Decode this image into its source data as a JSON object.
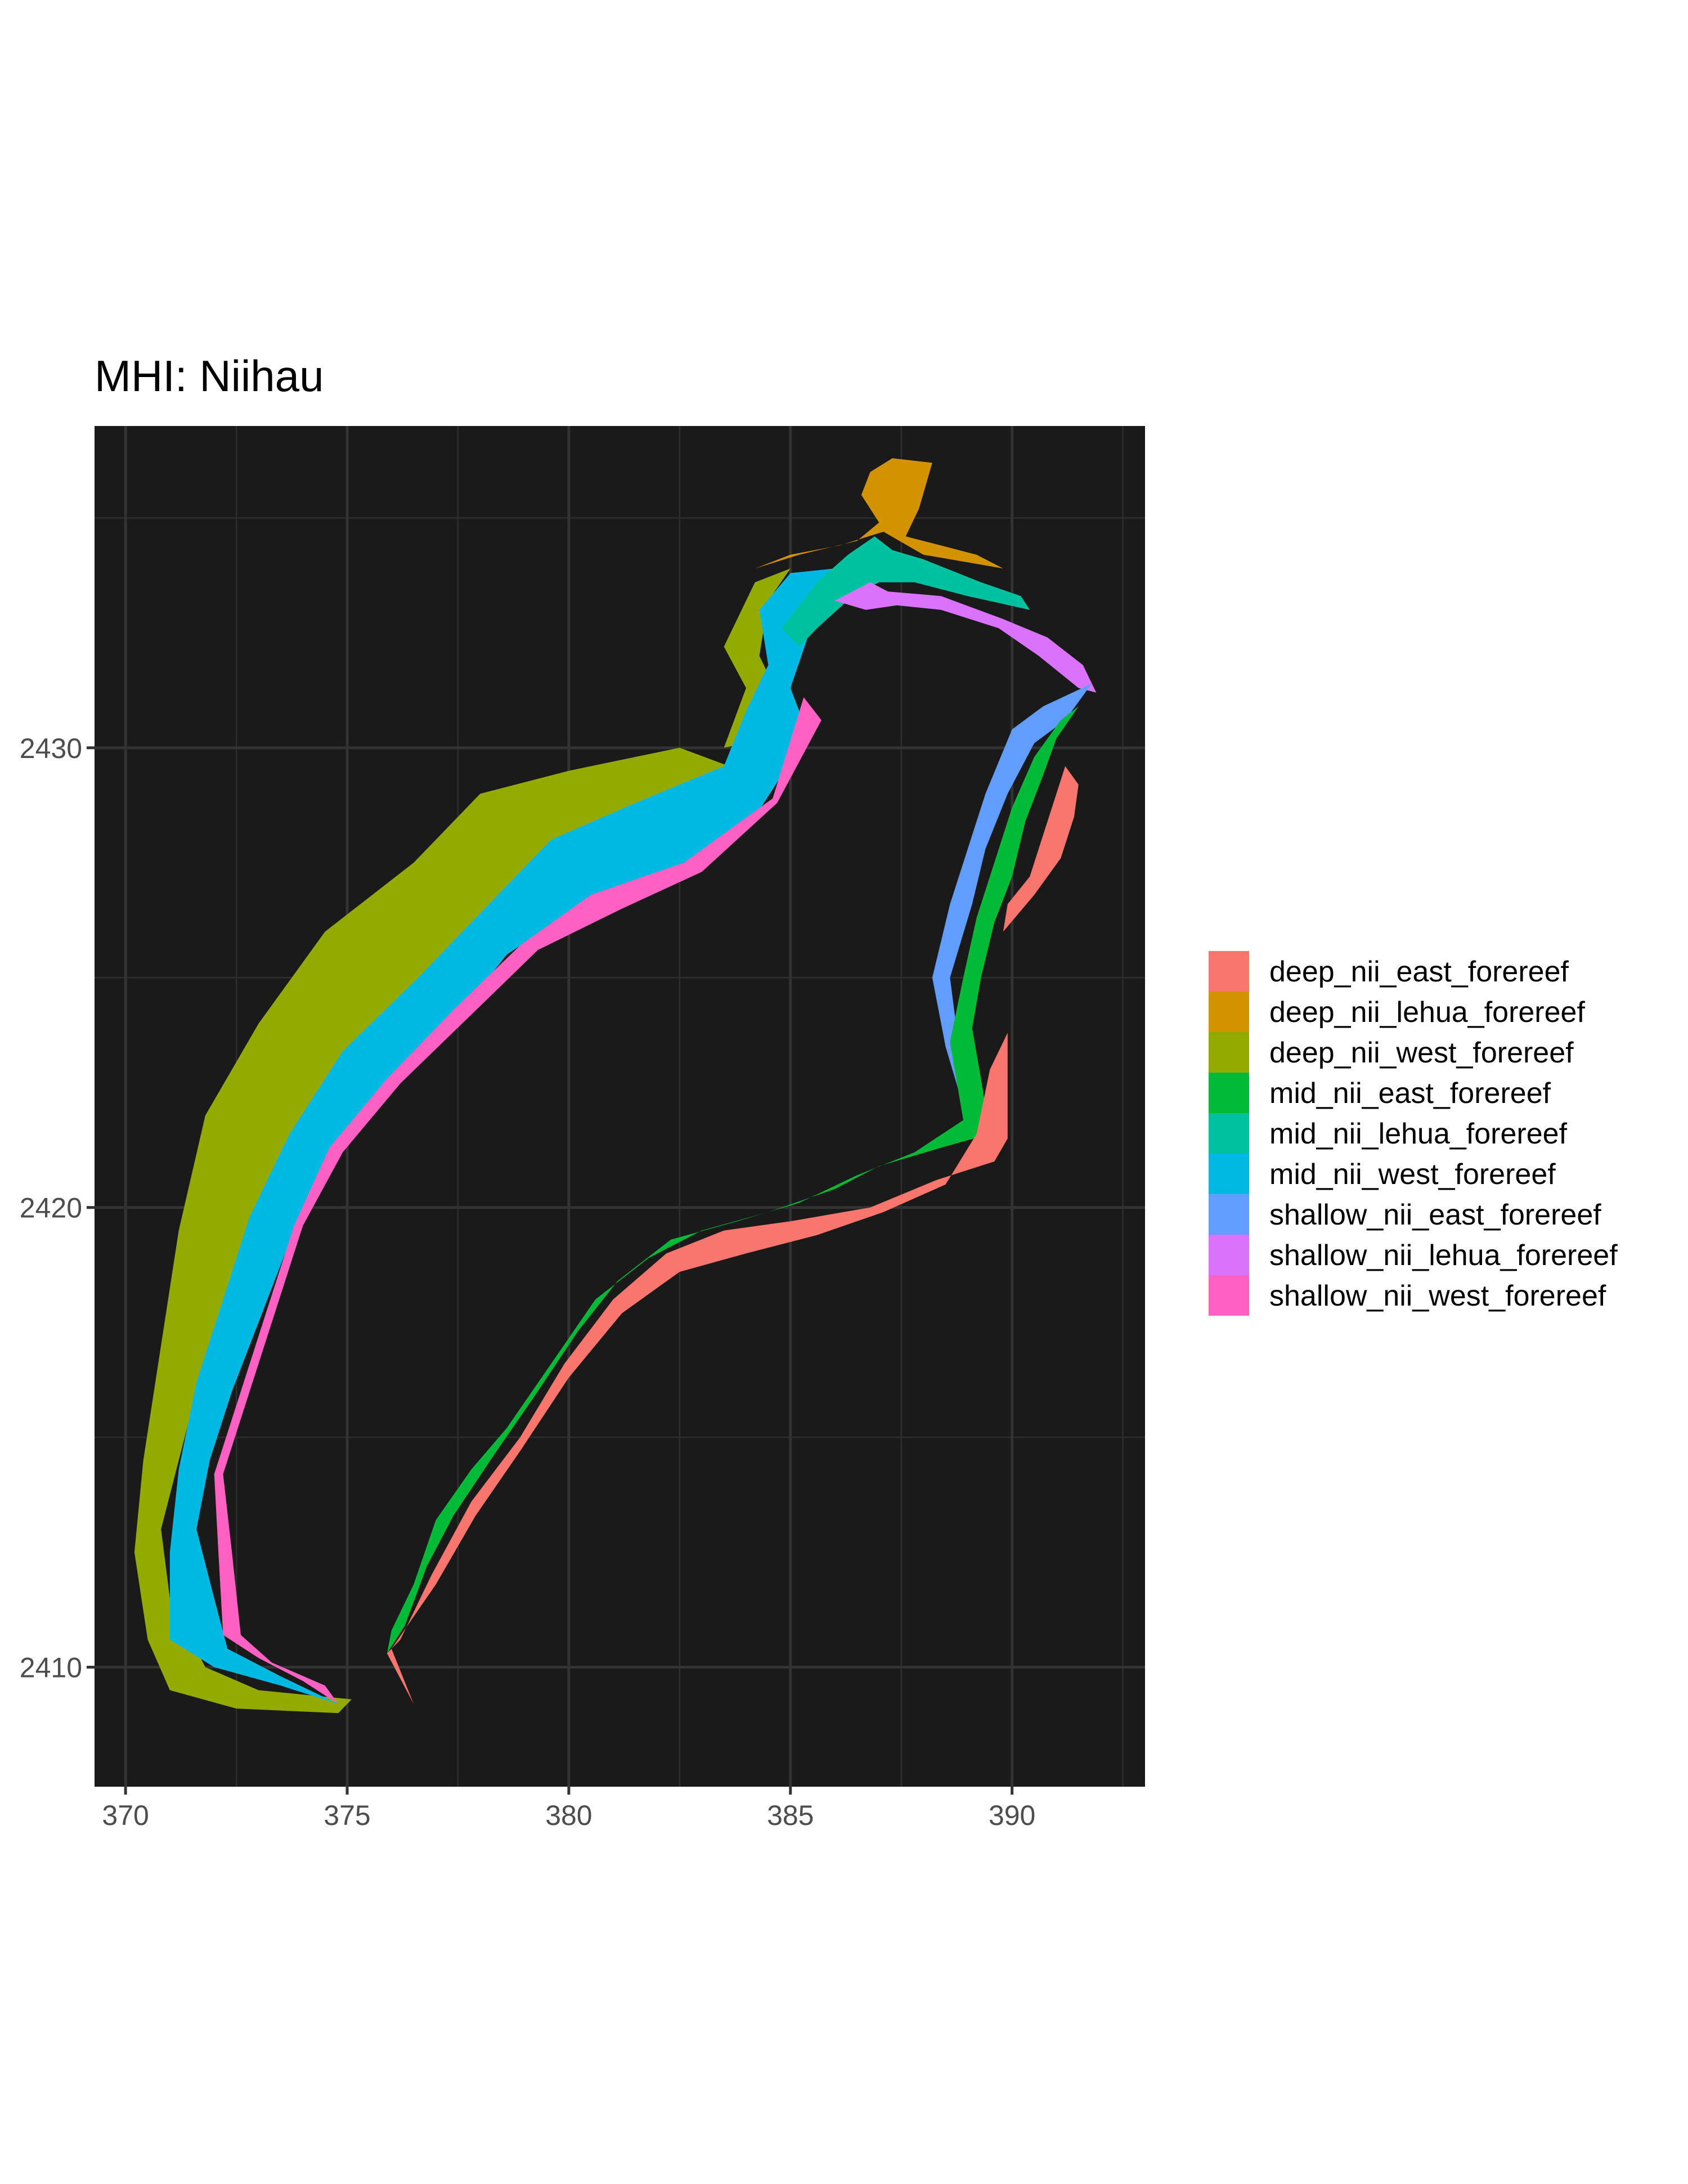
{
  "chart_data": {
    "type": "raster-map",
    "title": "MHI: Niihau",
    "xlabel": "",
    "ylabel": "",
    "xlim": [
      369.3,
      393
    ],
    "ylim": [
      2407.4,
      2437.0
    ],
    "x_ticks": [
      370,
      375,
      380,
      385,
      390
    ],
    "y_ticks": [
      2410,
      2420,
      2430
    ],
    "grid": true,
    "panel_background": "#1a1a1a",
    "legend_position": "right",
    "legend": [
      {
        "name": "deep_nii_east_forereef",
        "color": "#F8766D"
      },
      {
        "name": "deep_nii_lehua_forereef",
        "color": "#D39200"
      },
      {
        "name": "deep_nii_west_forereef",
        "color": "#93AA00"
      },
      {
        "name": "mid_nii_east_forereef",
        "color": "#00BA38"
      },
      {
        "name": "mid_nii_lehua_forereef",
        "color": "#00C19F"
      },
      {
        "name": "mid_nii_west_forereef",
        "color": "#00B9E3"
      },
      {
        "name": "shallow_nii_east_forereef",
        "color": "#619CFF"
      },
      {
        "name": "shallow_nii_lehua_forereef",
        "color": "#DB72FB"
      },
      {
        "name": "shallow_nii_west_forereef",
        "color": "#FF61C3"
      }
    ],
    "regions": [
      {
        "class": "deep_nii_west_forereef",
        "points": [
          [
            370.5,
            2410.6
          ],
          [
            371.0,
            2409.5
          ],
          [
            372.5,
            2409.1
          ],
          [
            374.8,
            2409.0
          ],
          [
            375.1,
            2409.3
          ],
          [
            373.0,
            2409.5
          ],
          [
            371.8,
            2410.0
          ],
          [
            371.0,
            2411.5
          ],
          [
            370.8,
            2413.0
          ],
          [
            371.2,
            2414.5
          ],
          [
            371.6,
            2416.0
          ],
          [
            372.2,
            2417.6
          ],
          [
            372.8,
            2419.2
          ],
          [
            373.6,
            2421.0
          ],
          [
            374.6,
            2422.6
          ],
          [
            376.3,
            2424.4
          ],
          [
            377.8,
            2425.7
          ],
          [
            379.2,
            2427.4
          ],
          [
            381.2,
            2428.5
          ],
          [
            383.5,
            2429.0
          ],
          [
            383.9,
            2429.5
          ],
          [
            382.5,
            2430.0
          ],
          [
            380.0,
            2429.5
          ],
          [
            378.0,
            2429.0
          ],
          [
            376.5,
            2427.5
          ],
          [
            374.5,
            2426.0
          ],
          [
            373.0,
            2424.0
          ],
          [
            371.8,
            2422.0
          ],
          [
            371.2,
            2419.5
          ],
          [
            370.8,
            2417.0
          ],
          [
            370.4,
            2414.5
          ],
          [
            370.2,
            2412.5
          ]
        ]
      },
      {
        "class": "deep_nii_west_forereef",
        "points": [
          [
            383.5,
            2430.0
          ],
          [
            384.0,
            2431.3
          ],
          [
            383.5,
            2432.2
          ],
          [
            384.2,
            2433.6
          ],
          [
            385.0,
            2433.9
          ],
          [
            384.5,
            2433.2
          ],
          [
            384.3,
            2432.0
          ],
          [
            384.8,
            2431.0
          ],
          [
            384.5,
            2430.2
          ]
        ]
      },
      {
        "class": "mid_nii_west_forereef",
        "points": [
          [
            371.0,
            2410.6
          ],
          [
            372.0,
            2410.0
          ],
          [
            373.5,
            2409.6
          ],
          [
            374.8,
            2409.2
          ],
          [
            373.5,
            2409.8
          ],
          [
            372.3,
            2410.4
          ],
          [
            372.0,
            2411.5
          ],
          [
            371.6,
            2413.0
          ],
          [
            371.9,
            2414.5
          ],
          [
            372.4,
            2416.0
          ],
          [
            373.0,
            2417.5
          ],
          [
            373.6,
            2419.0
          ],
          [
            374.4,
            2420.7
          ],
          [
            375.6,
            2422.2
          ],
          [
            377.2,
            2423.8
          ],
          [
            378.6,
            2425.5
          ],
          [
            380.3,
            2426.6
          ],
          [
            382.5,
            2427.3
          ],
          [
            384.2,
            2428.5
          ],
          [
            385.4,
            2430.3
          ],
          [
            385.0,
            2431.3
          ],
          [
            385.6,
            2433.0
          ],
          [
            386.5,
            2433.6
          ],
          [
            386.8,
            2434.2
          ],
          [
            386.0,
            2433.9
          ],
          [
            385.0,
            2433.8
          ],
          [
            384.3,
            2433.0
          ],
          [
            384.5,
            2431.8
          ],
          [
            384.0,
            2430.8
          ],
          [
            383.5,
            2429.6
          ],
          [
            381.5,
            2428.8
          ],
          [
            379.6,
            2428.0
          ],
          [
            378.1,
            2426.5
          ],
          [
            376.6,
            2425.0
          ],
          [
            374.9,
            2423.4
          ],
          [
            373.7,
            2421.6
          ],
          [
            372.8,
            2419.8
          ],
          [
            372.2,
            2418.0
          ],
          [
            371.6,
            2416.2
          ],
          [
            371.2,
            2414.3
          ],
          [
            371.0,
            2412.5
          ]
        ]
      },
      {
        "class": "shallow_nii_west_forereef",
        "points": [
          [
            372.2,
            2410.7
          ],
          [
            373.0,
            2410.2
          ],
          [
            374.0,
            2409.7
          ],
          [
            374.8,
            2409.2
          ],
          [
            374.5,
            2409.6
          ],
          [
            373.3,
            2410.1
          ],
          [
            372.6,
            2410.7
          ],
          [
            372.4,
            2412.5
          ],
          [
            372.2,
            2414.2
          ],
          [
            372.8,
            2416.0
          ],
          [
            373.4,
            2417.8
          ],
          [
            374.0,
            2419.6
          ],
          [
            374.9,
            2421.2
          ],
          [
            376.2,
            2422.7
          ],
          [
            377.7,
            2424.1
          ],
          [
            379.3,
            2425.6
          ],
          [
            381.2,
            2426.5
          ],
          [
            383.0,
            2427.3
          ],
          [
            384.7,
            2428.8
          ],
          [
            385.7,
            2430.6
          ],
          [
            385.3,
            2431.1
          ],
          [
            384.6,
            2428.9
          ],
          [
            382.6,
            2427.5
          ],
          [
            380.5,
            2426.8
          ],
          [
            378.9,
            2425.7
          ],
          [
            377.4,
            2424.3
          ],
          [
            375.9,
            2422.8
          ],
          [
            374.6,
            2421.3
          ],
          [
            373.8,
            2419.6
          ],
          [
            373.2,
            2417.8
          ],
          [
            372.6,
            2416.0
          ],
          [
            372.0,
            2414.2
          ],
          [
            372.1,
            2412.4
          ]
        ]
      },
      {
        "class": "mid_nii_lehua_forereef",
        "points": [
          [
            384.8,
            2432.6
          ],
          [
            385.6,
            2433.6
          ],
          [
            386.3,
            2434.2
          ],
          [
            386.9,
            2434.6
          ],
          [
            387.3,
            2434.3
          ],
          [
            388.0,
            2434.1
          ],
          [
            389.3,
            2433.6
          ],
          [
            390.2,
            2433.3
          ],
          [
            390.4,
            2433.0
          ],
          [
            389.0,
            2433.3
          ],
          [
            387.8,
            2433.6
          ],
          [
            387.0,
            2433.6
          ],
          [
            386.4,
            2433.3
          ],
          [
            385.6,
            2432.6
          ],
          [
            385.2,
            2432.2
          ]
        ]
      },
      {
        "class": "deep_nii_lehua_forereef",
        "points": [
          [
            384.2,
            2433.9
          ],
          [
            385.2,
            2434.2
          ],
          [
            386.5,
            2434.5
          ],
          [
            387.0,
            2434.9
          ],
          [
            386.6,
            2435.5
          ],
          [
            386.8,
            2436.0
          ],
          [
            387.3,
            2436.3
          ],
          [
            388.2,
            2436.2
          ],
          [
            387.9,
            2435.2
          ],
          [
            387.6,
            2434.6
          ],
          [
            389.2,
            2434.2
          ],
          [
            389.8,
            2433.9
          ],
          [
            388.0,
            2434.2
          ],
          [
            387.1,
            2434.7
          ],
          [
            386.1,
            2434.4
          ],
          [
            385.0,
            2434.2
          ]
        ]
      },
      {
        "class": "shallow_nii_lehua_forereef",
        "points": [
          [
            386.0,
            2433.2
          ],
          [
            386.8,
            2433.6
          ],
          [
            387.2,
            2433.4
          ],
          [
            388.4,
            2433.3
          ],
          [
            389.8,
            2432.8
          ],
          [
            390.8,
            2432.4
          ],
          [
            391.6,
            2431.8
          ],
          [
            391.9,
            2431.2
          ],
          [
            391.5,
            2431.3
          ],
          [
            390.6,
            2432.0
          ],
          [
            389.7,
            2432.6
          ],
          [
            388.4,
            2433.0
          ],
          [
            387.4,
            2433.1
          ],
          [
            386.7,
            2433.0
          ]
        ]
      },
      {
        "class": "shallow_nii_east_forereef",
        "points": [
          [
            391.8,
            2431.4
          ],
          [
            391.2,
            2430.6
          ],
          [
            390.5,
            2430.1
          ],
          [
            389.9,
            2429.0
          ],
          [
            389.4,
            2427.8
          ],
          [
            389.1,
            2426.6
          ],
          [
            388.6,
            2425.0
          ],
          [
            388.8,
            2423.5
          ],
          [
            389.1,
            2422.7
          ],
          [
            388.9,
            2422.2
          ],
          [
            388.5,
            2423.5
          ],
          [
            388.2,
            2425.0
          ],
          [
            388.6,
            2426.6
          ],
          [
            389.0,
            2427.8
          ],
          [
            389.4,
            2429.0
          ],
          [
            390.0,
            2430.4
          ],
          [
            390.7,
            2430.9
          ]
        ]
      },
      {
        "class": "mid_nii_east_forereef",
        "points": [
          [
            391.5,
            2430.9
          ],
          [
            391.0,
            2430.2
          ],
          [
            390.7,
            2429.4
          ],
          [
            390.3,
            2428.4
          ],
          [
            390.0,
            2427.2
          ],
          [
            389.6,
            2426.2
          ],
          [
            389.3,
            2425.0
          ],
          [
            389.1,
            2423.9
          ],
          [
            389.3,
            2422.8
          ],
          [
            389.5,
            2421.6
          ],
          [
            388.4,
            2421.3
          ],
          [
            387.0,
            2420.9
          ],
          [
            386.0,
            2420.4
          ],
          [
            384.5,
            2419.9
          ],
          [
            383.0,
            2419.5
          ],
          [
            381.8,
            2418.9
          ],
          [
            380.6,
            2418.0
          ],
          [
            379.6,
            2416.6
          ],
          [
            378.6,
            2415.2
          ],
          [
            377.8,
            2414.3
          ],
          [
            377.0,
            2413.2
          ],
          [
            376.5,
            2411.8
          ],
          [
            376.0,
            2410.8
          ],
          [
            375.9,
            2410.3
          ],
          [
            376.3,
            2410.9
          ],
          [
            376.8,
            2412.2
          ],
          [
            377.4,
            2413.3
          ],
          [
            378.3,
            2414.6
          ],
          [
            379.3,
            2416.0
          ],
          [
            380.2,
            2417.3
          ],
          [
            381.1,
            2418.4
          ],
          [
            382.3,
            2419.3
          ],
          [
            383.8,
            2419.7
          ],
          [
            385.2,
            2420.1
          ],
          [
            386.5,
            2420.7
          ],
          [
            387.8,
            2421.2
          ],
          [
            388.9,
            2421.9
          ],
          [
            388.6,
            2423.6
          ],
          [
            388.9,
            2425.0
          ],
          [
            389.2,
            2426.3
          ],
          [
            389.6,
            2427.5
          ],
          [
            390.0,
            2428.7
          ],
          [
            390.5,
            2429.8
          ],
          [
            391.1,
            2430.6
          ]
        ]
      },
      {
        "class": "deep_nii_east_forereef",
        "points": [
          [
            391.2,
            2429.6
          ],
          [
            390.8,
            2428.4
          ],
          [
            390.4,
            2427.2
          ],
          [
            389.9,
            2426.6
          ],
          [
            389.8,
            2426.0
          ],
          [
            390.5,
            2426.8
          ],
          [
            391.1,
            2427.6
          ],
          [
            391.4,
            2428.5
          ],
          [
            391.5,
            2429.2
          ]
        ]
      },
      {
        "class": "deep_nii_east_forereef",
        "points": [
          [
            389.2,
            2421.6
          ],
          [
            389.5,
            2423.0
          ],
          [
            389.9,
            2423.8
          ],
          [
            389.9,
            2421.5
          ],
          [
            389.6,
            2421.0
          ],
          [
            388.3,
            2420.6
          ],
          [
            386.8,
            2420.0
          ],
          [
            385.0,
            2419.7
          ],
          [
            383.5,
            2419.5
          ],
          [
            382.2,
            2419.0
          ],
          [
            381.0,
            2418.0
          ],
          [
            379.9,
            2416.6
          ],
          [
            378.9,
            2415.0
          ],
          [
            377.8,
            2413.6
          ],
          [
            376.9,
            2412.0
          ],
          [
            376.2,
            2410.6
          ],
          [
            375.9,
            2410.3
          ],
          [
            376.5,
            2409.2
          ],
          [
            376.0,
            2410.4
          ],
          [
            377.0,
            2411.8
          ],
          [
            377.9,
            2413.3
          ],
          [
            378.9,
            2414.7
          ],
          [
            380.0,
            2416.3
          ],
          [
            381.2,
            2417.7
          ],
          [
            382.5,
            2418.6
          ],
          [
            384.0,
            2419.0
          ],
          [
            385.6,
            2419.4
          ],
          [
            387.1,
            2419.9
          ],
          [
            388.5,
            2420.5
          ]
        ]
      }
    ]
  }
}
